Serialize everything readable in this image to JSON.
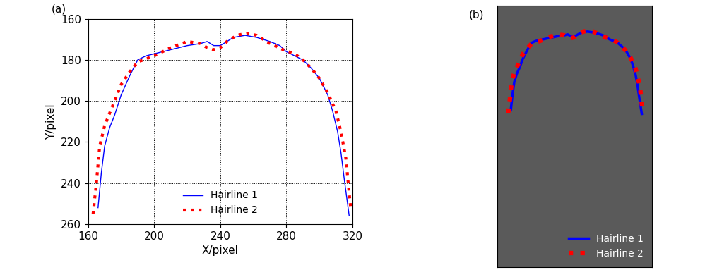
{
  "chart_data": [
    {
      "type": "line",
      "title": "(a)",
      "x_label": "X/pixel",
      "y_label": "Y/pixel",
      "xlim": [
        160,
        320
      ],
      "xticks": [
        160,
        200,
        240,
        280,
        320
      ],
      "ylim": [
        260,
        160
      ],
      "yticks": [
        160,
        180,
        200,
        220,
        240,
        260
      ],
      "grid": true,
      "legend": "lower center",
      "series": [
        {
          "name": "Hairline 1",
          "color": "#0000ff",
          "line_style": "solid",
          "x": [
            166,
            168,
            170,
            173,
            176,
            180,
            185,
            190,
            195,
            200,
            210,
            220,
            228,
            232,
            236,
            240,
            244,
            248,
            255,
            262,
            270,
            276,
            280,
            285,
            290,
            295,
            300,
            305,
            308,
            311,
            313,
            315,
            318
          ],
          "values": [
            252,
            235,
            222,
            213,
            207,
            197,
            188,
            180,
            178,
            177,
            175,
            173,
            172,
            171,
            173,
            173,
            171,
            169,
            168,
            169,
            171,
            173,
            176,
            178,
            180,
            184,
            189,
            197,
            205,
            215,
            225,
            238,
            256
          ]
        },
        {
          "name": "Hairline 2",
          "color": "#ff0000",
          "line_style": "dotted",
          "x": [
            163,
            165,
            167,
            170,
            175,
            180,
            185,
            190,
            200,
            210,
            220,
            228,
            232,
            236,
            240,
            244,
            250,
            256,
            262,
            270,
            278,
            285,
            290,
            295,
            300,
            305,
            310,
            313,
            316,
            318,
            319
          ],
          "values": [
            255,
            240,
            222,
            212,
            202,
            192,
            186,
            181,
            178,
            174,
            171,
            172,
            174,
            175,
            174,
            171,
            168,
            167,
            168,
            172,
            175,
            177,
            180,
            184,
            189,
            196,
            205,
            215,
            228,
            245,
            253
          ]
        }
      ]
    },
    {
      "type": "line",
      "title": "(b)",
      "tick_labels": false,
      "legend": "lower right",
      "xlim": [
        150,
        330
      ],
      "ylim": [
        420,
        140
      ],
      "series": [
        {
          "name": "Hairline 1",
          "color": "#0000ff",
          "line_style": "solid",
          "x": [
            166,
            168,
            170,
            173,
            176,
            180,
            185,
            190,
            195,
            200,
            210,
            220,
            228,
            232,
            236,
            240,
            244,
            248,
            255,
            262,
            270,
            276,
            280,
            285,
            290,
            295,
            300,
            305,
            308,
            311,
            313,
            315,
            318
          ],
          "values": [
            252,
            235,
            222,
            213,
            207,
            197,
            188,
            180,
            178,
            177,
            175,
            173,
            172,
            171,
            173,
            173,
            171,
            169,
            168,
            169,
            171,
            173,
            176,
            178,
            180,
            184,
            189,
            197,
            205,
            215,
            225,
            238,
            256
          ]
        },
        {
          "name": "Hairline 2",
          "color": "#ff0000",
          "line_style": "dotted",
          "x": [
            163,
            165,
            167,
            170,
            175,
            180,
            185,
            190,
            200,
            210,
            220,
            228,
            232,
            236,
            240,
            244,
            250,
            256,
            262,
            270,
            278,
            285,
            290,
            295,
            300,
            305,
            310,
            313,
            316,
            318,
            319
          ],
          "values": [
            255,
            240,
            222,
            212,
            202,
            192,
            186,
            181,
            178,
            174,
            171,
            172,
            174,
            175,
            174,
            171,
            168,
            167,
            168,
            172,
            175,
            177,
            180,
            184,
            189,
            196,
            205,
            215,
            228,
            245,
            253
          ]
        }
      ]
    }
  ]
}
